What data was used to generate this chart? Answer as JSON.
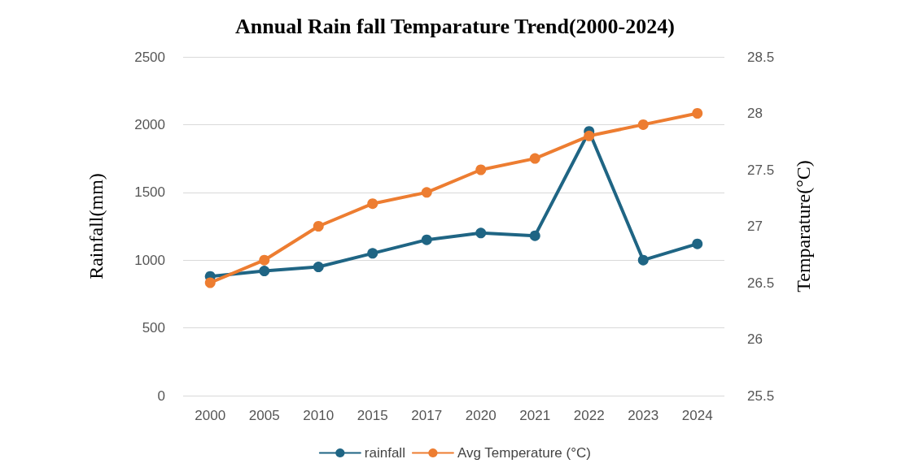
{
  "chart_data": {
    "type": "line",
    "title": "Annual Rain fall Temparature Trend(2000-2024)",
    "ylabel": "Rainfall(mm)",
    "y2label": "Temparature(°C)",
    "categories": [
      "2000",
      "2005",
      "2010",
      "2015",
      "2017",
      "2020",
      "2021",
      "2022",
      "2023",
      "2024"
    ],
    "series": [
      {
        "name": "rainfall",
        "color": "#1f6584",
        "values": [
          880,
          920,
          950,
          1050,
          1150,
          1200,
          1180,
          1950,
          1000,
          1120
        ]
      },
      {
        "name": "Avg Temperature (°C)",
        "color": "#ed7d31",
        "axis": "y2",
        "values": [
          26.5,
          26.7,
          27.0,
          27.2,
          27.3,
          27.5,
          27.6,
          27.8,
          27.9,
          28.0
        ]
      }
    ],
    "ylim": [
      0,
      2500
    ],
    "yticks": [
      0,
      500,
      1000,
      1500,
      2000,
      2500
    ],
    "y2lim": [
      25.5,
      28.5
    ],
    "y2ticks": [
      25.5,
      26,
      26.5,
      27,
      27.5,
      28,
      28.5
    ],
    "grid": "y",
    "legend": "bottom",
    "marker": "circle",
    "line_style": "solid"
  }
}
